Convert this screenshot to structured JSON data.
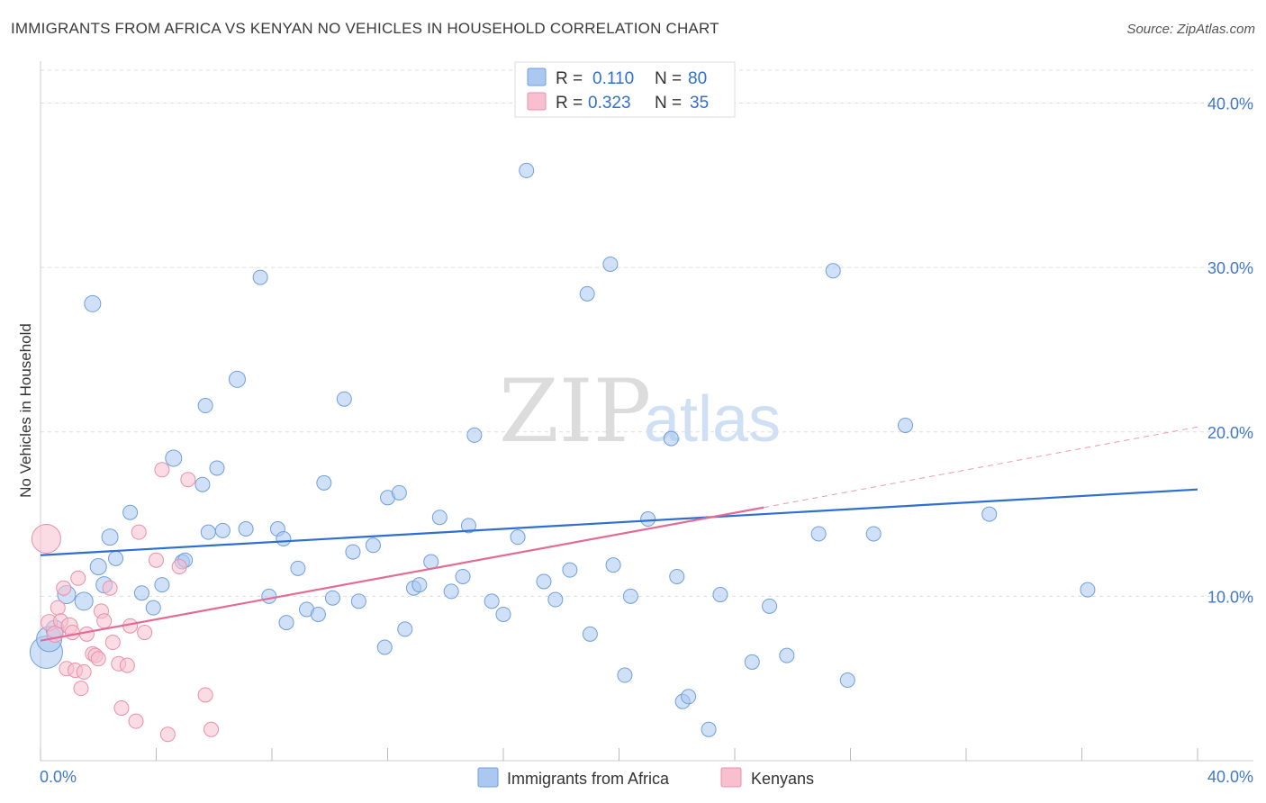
{
  "title": "IMMIGRANTS FROM AFRICA VS KENYAN NO VEHICLES IN HOUSEHOLD CORRELATION CHART",
  "source": "Source: ZipAtlas.com",
  "watermark": {
    "zip": "ZIP",
    "atlas": "atlas"
  },
  "colors": {
    "blue_fill": "#aac8f0",
    "blue_stroke": "#6f9fdc",
    "blue_line": "#2f6fcf",
    "pink_fill": "#f7bfd0",
    "pink_stroke": "#e890aa",
    "pink_line": "#e36b95",
    "axis_text": "#3f78c8",
    "grid": "#dddddd"
  },
  "legend": {
    "r_label": "R =",
    "n_label": "N =",
    "series": [
      {
        "r": "0.110",
        "n": "80"
      },
      {
        "r": "0.323",
        "n": "35"
      }
    ]
  },
  "bottom_legend": [
    "Immigrants from Africa",
    "Kenyans"
  ],
  "chart_data": {
    "type": "scatter",
    "xlabel": "",
    "ylabel": "No Vehicles in Household",
    "xlim": [
      0,
      40
    ],
    "ylim": [
      0,
      42
    ],
    "x_tick_labels": [
      "0.0%",
      "40.0%"
    ],
    "y_ticks": [
      10,
      20,
      30,
      40
    ],
    "y_tick_labels": [
      "10.0%",
      "20.0%",
      "30.0%",
      "40.0%"
    ],
    "grid": true,
    "legend_position": "top-center",
    "series": [
      {
        "name": "Immigrants from Africa",
        "color": "#aac8f0",
        "trend": {
          "x": [
            0,
            40
          ],
          "y": [
            12.5,
            16.5
          ]
        },
        "points": [
          [
            0.2,
            6.6,
            18
          ],
          [
            0.3,
            7.4,
            14
          ],
          [
            0.5,
            8.0,
            10
          ],
          [
            0.9,
            10.1,
            10
          ],
          [
            1.5,
            9.7,
            10
          ],
          [
            1.8,
            27.8,
            9
          ],
          [
            2.0,
            11.8,
            9
          ],
          [
            2.2,
            10.7,
            9
          ],
          [
            2.4,
            13.6,
            9
          ],
          [
            2.6,
            12.3,
            8
          ],
          [
            3.1,
            15.1,
            8
          ],
          [
            3.5,
            10.2,
            8
          ],
          [
            3.9,
            9.3,
            8
          ],
          [
            4.2,
            10.7,
            8
          ],
          [
            4.6,
            18.4,
            9
          ],
          [
            4.9,
            12.1,
            8
          ],
          [
            5.0,
            12.2,
            8
          ],
          [
            5.6,
            16.8,
            8
          ],
          [
            5.7,
            21.6,
            8
          ],
          [
            5.8,
            13.9,
            8
          ],
          [
            6.1,
            17.8,
            8
          ],
          [
            6.3,
            14.0,
            8
          ],
          [
            6.8,
            23.2,
            9
          ],
          [
            7.1,
            14.1,
            8
          ],
          [
            7.6,
            29.4,
            8
          ],
          [
            7.9,
            10.0,
            8
          ],
          [
            8.2,
            14.1,
            8
          ],
          [
            8.4,
            13.5,
            8
          ],
          [
            8.5,
            8.4,
            8
          ],
          [
            8.9,
            11.7,
            8
          ],
          [
            9.2,
            9.2,
            8
          ],
          [
            9.6,
            8.9,
            8
          ],
          [
            9.8,
            16.9,
            8
          ],
          [
            10.1,
            9.9,
            8
          ],
          [
            10.5,
            22.0,
            8
          ],
          [
            10.8,
            12.7,
            8
          ],
          [
            11.0,
            9.7,
            8
          ],
          [
            11.5,
            13.1,
            8
          ],
          [
            11.9,
            6.9,
            8
          ],
          [
            12.0,
            16.0,
            8
          ],
          [
            12.4,
            16.3,
            8
          ],
          [
            12.6,
            8.0,
            8
          ],
          [
            12.9,
            10.5,
            8
          ],
          [
            13.1,
            10.7,
            8
          ],
          [
            13.5,
            12.1,
            8
          ],
          [
            13.8,
            14.8,
            8
          ],
          [
            14.2,
            10.3,
            8
          ],
          [
            14.6,
            11.2,
            8
          ],
          [
            14.8,
            14.3,
            8
          ],
          [
            15.0,
            19.8,
            8
          ],
          [
            15.6,
            9.7,
            8
          ],
          [
            16.0,
            8.9,
            8
          ],
          [
            16.5,
            13.6,
            8
          ],
          [
            16.8,
            35.9,
            8
          ],
          [
            17.4,
            10.9,
            8
          ],
          [
            17.8,
            9.8,
            8
          ],
          [
            18.3,
            11.6,
            8
          ],
          [
            18.9,
            28.4,
            8
          ],
          [
            19.0,
            7.7,
            8
          ],
          [
            19.7,
            30.2,
            8
          ],
          [
            19.8,
            11.9,
            8
          ],
          [
            20.2,
            5.2,
            8
          ],
          [
            20.4,
            10.0,
            8
          ],
          [
            21.0,
            14.7,
            8
          ],
          [
            21.8,
            19.6,
            8
          ],
          [
            22.0,
            11.2,
            8
          ],
          [
            22.2,
            3.6,
            8
          ],
          [
            22.4,
            3.9,
            8
          ],
          [
            23.1,
            1.9,
            8
          ],
          [
            23.5,
            10.1,
            8
          ],
          [
            24.6,
            6.0,
            8
          ],
          [
            25.2,
            9.4,
            8
          ],
          [
            25.8,
            6.4,
            8
          ],
          [
            26.9,
            13.8,
            8
          ],
          [
            27.4,
            29.8,
            8
          ],
          [
            27.9,
            4.9,
            8
          ],
          [
            28.8,
            13.8,
            8
          ],
          [
            29.9,
            20.4,
            8
          ],
          [
            32.8,
            15.0,
            8
          ],
          [
            36.2,
            10.4,
            8
          ]
        ]
      },
      {
        "name": "Kenyans",
        "color": "#f7bfd0",
        "trend": {
          "x": [
            0,
            25
          ],
          "y": [
            7.3,
            15.4
          ]
        },
        "trend_extension": {
          "x": [
            25,
            40
          ],
          "y": [
            15.4,
            20.3
          ]
        },
        "points": [
          [
            0.2,
            13.5,
            16
          ],
          [
            0.3,
            8.4,
            9
          ],
          [
            0.5,
            7.7,
            9
          ],
          [
            0.6,
            9.3,
            8
          ],
          [
            0.7,
            8.5,
            8
          ],
          [
            0.8,
            10.5,
            8
          ],
          [
            0.9,
            5.6,
            8
          ],
          [
            1.0,
            8.2,
            9
          ],
          [
            1.1,
            7.8,
            8
          ],
          [
            1.2,
            5.5,
            8
          ],
          [
            1.3,
            11.1,
            8
          ],
          [
            1.4,
            4.4,
            8
          ],
          [
            1.5,
            5.4,
            8
          ],
          [
            1.6,
            7.7,
            8
          ],
          [
            1.8,
            6.5,
            8
          ],
          [
            1.9,
            6.4,
            8
          ],
          [
            2.0,
            6.2,
            8
          ],
          [
            2.1,
            9.1,
            8
          ],
          [
            2.2,
            8.5,
            8
          ],
          [
            2.4,
            10.5,
            8
          ],
          [
            2.5,
            7.2,
            8
          ],
          [
            2.7,
            5.9,
            8
          ],
          [
            2.8,
            3.2,
            8
          ],
          [
            3.0,
            5.8,
            8
          ],
          [
            3.1,
            8.2,
            8
          ],
          [
            3.3,
            2.4,
            8
          ],
          [
            3.4,
            13.9,
            8
          ],
          [
            3.6,
            7.8,
            8
          ],
          [
            4.0,
            12.2,
            8
          ],
          [
            4.2,
            17.7,
            8
          ],
          [
            4.4,
            1.6,
            8
          ],
          [
            4.8,
            11.8,
            8
          ],
          [
            5.1,
            17.1,
            8
          ],
          [
            5.7,
            4.0,
            8
          ],
          [
            5.9,
            1.9,
            8
          ]
        ]
      }
    ]
  }
}
